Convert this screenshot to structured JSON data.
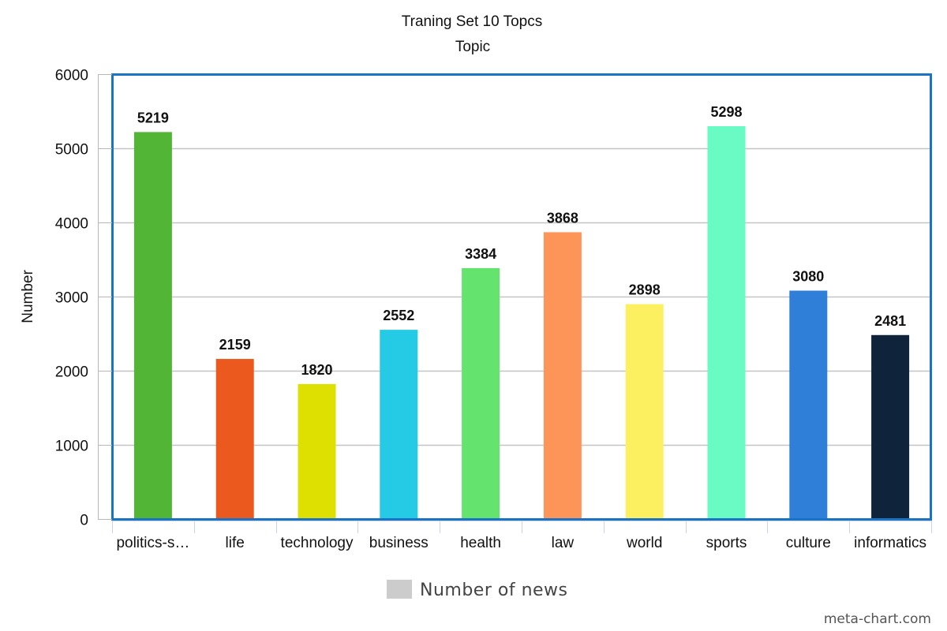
{
  "chart_data": {
    "type": "bar",
    "title": "Traning Set 10 Topcs",
    "xlabel": "Topic",
    "ylabel": "Number",
    "ylim": [
      0,
      6000
    ],
    "yticks": [
      0,
      1000,
      2000,
      3000,
      4000,
      5000,
      6000
    ],
    "grid": true,
    "legend_position": "bottom",
    "categories": [
      "politics-s…",
      "life",
      "technology",
      "business",
      "health",
      "law",
      "world",
      "sports",
      "culture",
      "informatics"
    ],
    "series": [
      {
        "name": "Number of news",
        "values": [
          5219,
          2159,
          1820,
          2552,
          3384,
          3868,
          2898,
          5298,
          3080,
          2481
        ],
        "colors": [
          "#52b535",
          "#ec591e",
          "#dde000",
          "#25cae4",
          "#64e46e",
          "#fe9558",
          "#fdf060",
          "#6afac4",
          "#2f7ed8",
          "#0f233a"
        ]
      }
    ],
    "frame_color": "#1a73c4",
    "legend_swatch_color": "#cccccc"
  },
  "credit": "meta-chart.com"
}
